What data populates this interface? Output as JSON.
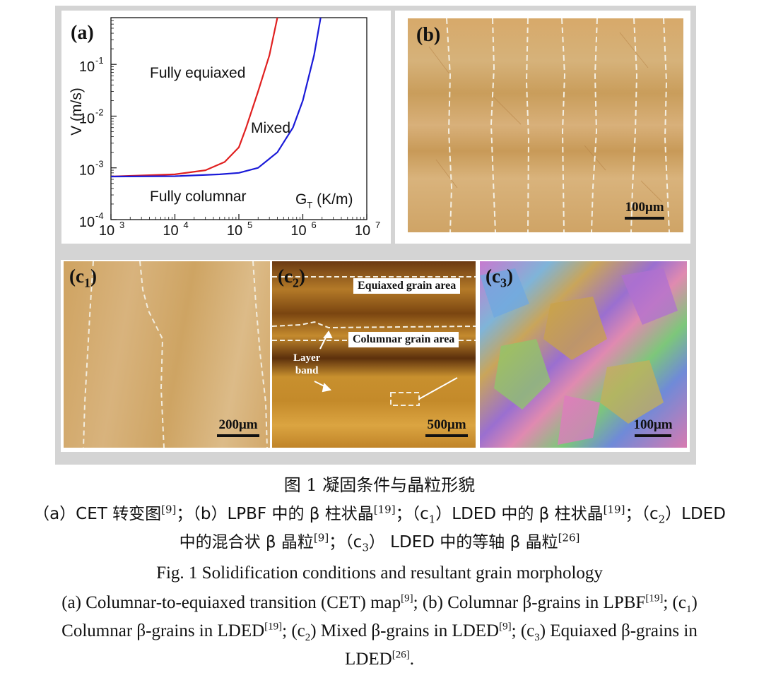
{
  "panel_a": {
    "label": "(a)",
    "ylabel": "V (m/s)",
    "xlabel_main": "G",
    "xlabel_sub": "T",
    "xlabel_unit": " (K/m)",
    "region_equiaxed": "Fully equiaxed",
    "region_mixed": "Mixed",
    "region_columnar": "Fully columnar",
    "x_ticks": [
      {
        "base": "10",
        "exp": "3",
        "value": 1000
      },
      {
        "base": "10",
        "exp": "4",
        "value": 10000
      },
      {
        "base": "10",
        "exp": "5",
        "value": 100000
      },
      {
        "base": "10",
        "exp": "6",
        "value": 1000000
      },
      {
        "base": "10",
        "exp": "7",
        "value": 10000000
      }
    ],
    "y_ticks": [
      {
        "base": "10",
        "exp": "-4",
        "value": 0.0001
      },
      {
        "base": "10",
        "exp": "-3",
        "value": 0.001
      },
      {
        "base": "10",
        "exp": "-2",
        "value": 0.01
      },
      {
        "base": "10",
        "exp": "-1",
        "value": 0.1
      }
    ]
  },
  "chart_data": {
    "type": "line",
    "title": "",
    "xlabel": "GT (K/m)",
    "ylabel": "V (m/s)",
    "x_scale": "log",
    "y_scale": "log",
    "xlim": [
      1000,
      10000000
    ],
    "ylim": [
      0.0001,
      0.8
    ],
    "series": [
      {
        "color": "#e02020",
        "x": [
          1000,
          10000,
          30000,
          60000,
          100000,
          130000,
          200000,
          300000,
          400000
        ],
        "y": [
          0.00068,
          0.00075,
          0.0009,
          0.0013,
          0.0025,
          0.006,
          0.03,
          0.15,
          0.8
        ]
      },
      {
        "color": "#1a1ad8",
        "x": [
          1000,
          10000,
          50000,
          100000,
          200000,
          400000,
          700000,
          1000000,
          1500000,
          1900000
        ],
        "y": [
          0.00068,
          0.00069,
          0.00075,
          0.0008,
          0.001,
          0.002,
          0.006,
          0.02,
          0.15,
          0.8
        ]
      }
    ]
  },
  "panel_b": {
    "label": "(b)",
    "scale": "100μm"
  },
  "panel_c1": {
    "label": "(c",
    "label_sub": "1",
    "label_end": ")",
    "scale": "200μm"
  },
  "panel_c2": {
    "label": "(c",
    "label_sub": "2",
    "label_end": ")",
    "scale": "500μm",
    "equiaxed": "Equiaxed grain area",
    "columnar": "Columnar  grain area",
    "layer_band_1": "Layer",
    "layer_band_2": "band"
  },
  "panel_c3": {
    "label": "(c",
    "label_sub": "3",
    "label_end": ")",
    "scale": "100μm"
  },
  "caption": {
    "cn_title": "图 1  凝固条件与晶粒形貌",
    "cn_line1": {
      "p1": "（a）CET 转变图",
      "r1": "[9]",
      "p2": "；（b）LPBF 中的 β 柱状晶",
      "r2": "[19]",
      "p3": "；（c",
      "s3": "1",
      "p3b": "）LDED 中的 β 柱状晶",
      "r3": "[19]",
      "p4": "；（c",
      "s4": "2",
      "p4b": "）LDED"
    },
    "cn_line2": {
      "p1": "中的混合状 β 晶粒",
      "r1": "[9]",
      "p2": "；（c",
      "s2": "3",
      "p2b": "） LDED 中的等轴 β 晶粒",
      "r2": "[26]"
    },
    "en_title": "Fig. 1 Solidification conditions and resultant grain morphology",
    "en_line1": {
      "p1": "(a) Columnar-to-equiaxed transition (CET) map",
      "r1": "[9]",
      "p2": "; (b) Columnar β-grains in LPBF",
      "r2": "[19]",
      "p3": "; (c",
      "s3": "1",
      "p3b": ")"
    },
    "en_line2": {
      "p1": "Columnar β-grains in LDED",
      "r1": "[19]",
      "p2": "; (c",
      "s2": "2",
      "p2b": ") Mixed β-grains in LDED",
      "r2": "[9]",
      "p3": "; (c",
      "s3": "3",
      "p3b": ") Equiaxed β-grains in"
    },
    "en_line3": {
      "p1": "LDED",
      "r1": "[26]",
      "p2": "."
    }
  }
}
